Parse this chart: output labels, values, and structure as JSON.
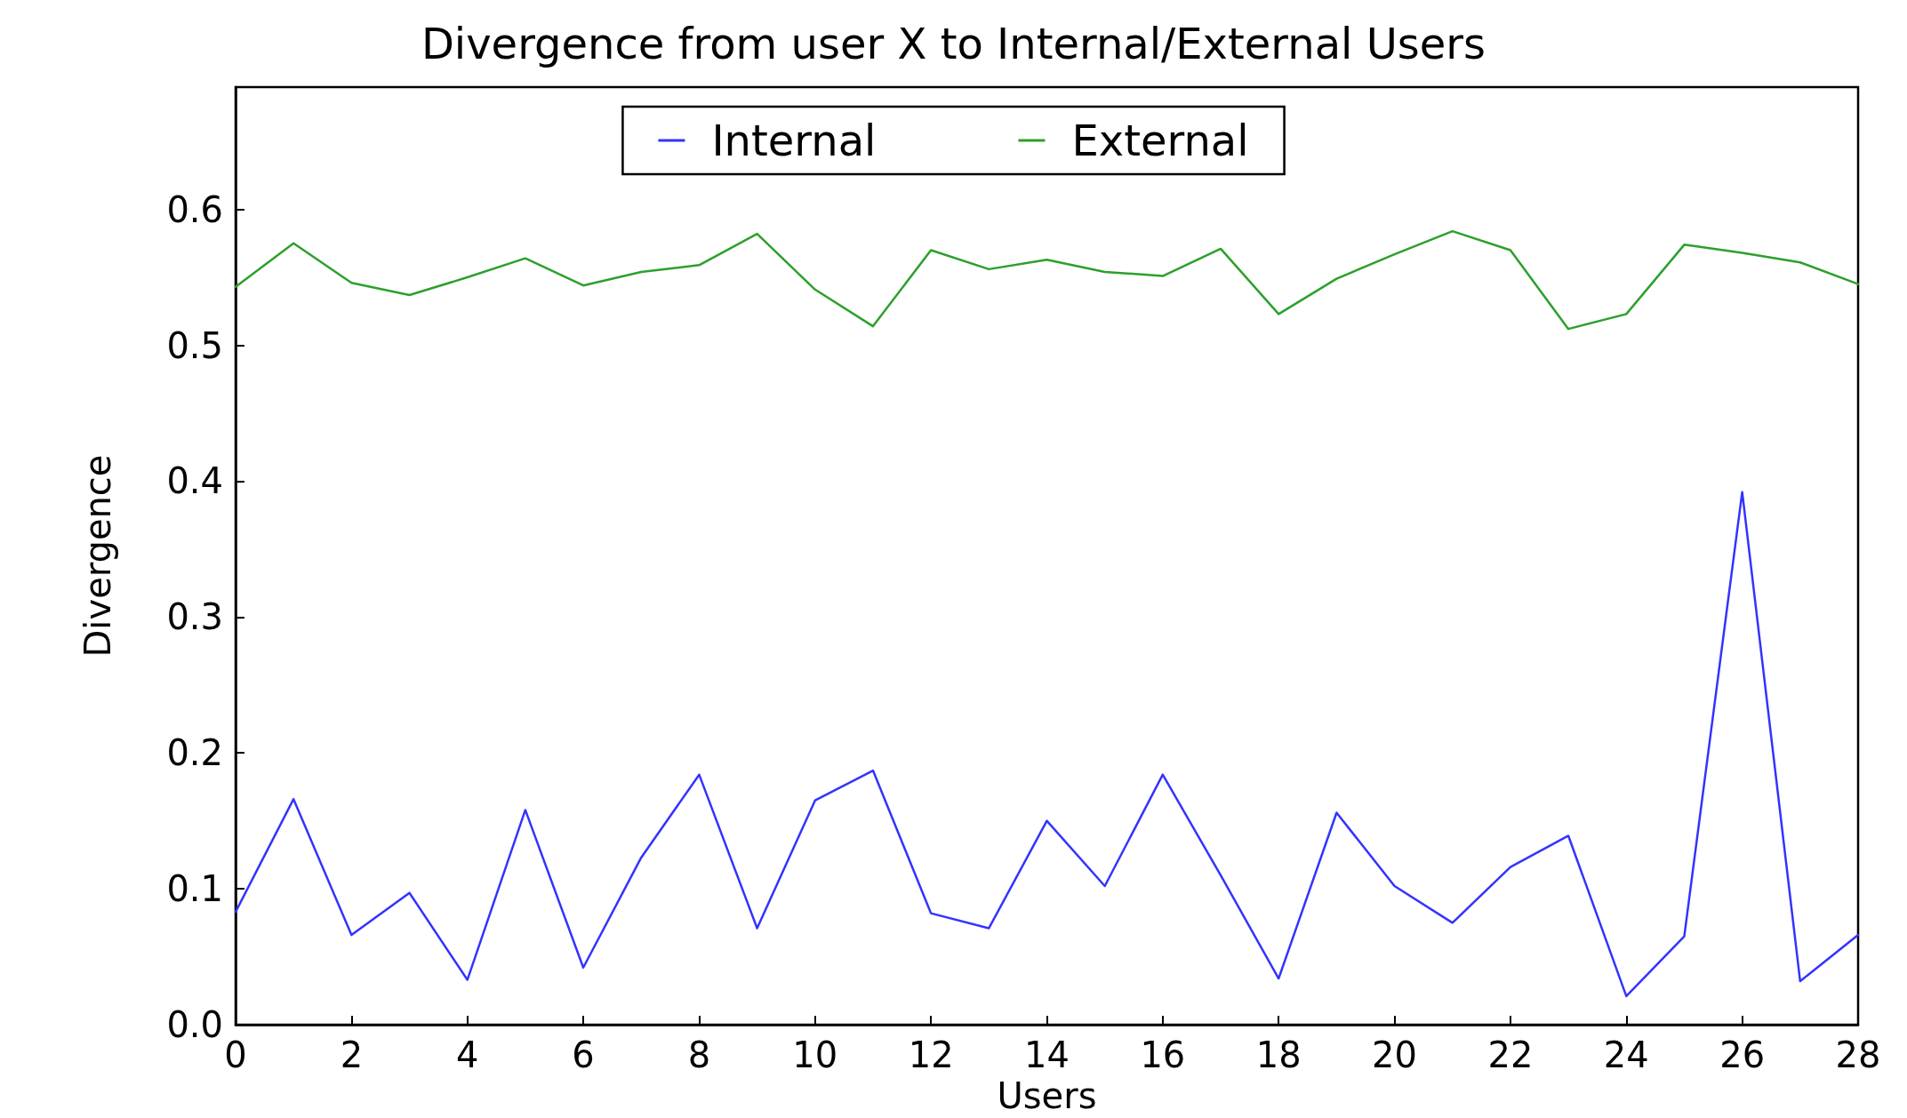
{
  "chart_data": {
    "type": "line",
    "title": "Divergence from user X to Internal/External Users",
    "xlabel": "Users",
    "ylabel": "Divergence",
    "x": [
      0,
      1,
      2,
      3,
      4,
      5,
      6,
      7,
      8,
      9,
      10,
      11,
      12,
      13,
      14,
      15,
      16,
      17,
      18,
      19,
      20,
      21,
      22,
      23,
      24,
      25,
      26,
      27,
      28
    ],
    "series": [
      {
        "name": "Internal",
        "color": "#3333ff",
        "values": [
          0.083,
          0.166,
          0.066,
          0.097,
          0.033,
          0.158,
          0.042,
          0.123,
          0.184,
          0.071,
          0.165,
          0.187,
          0.082,
          0.071,
          0.15,
          0.102,
          0.184,
          0.11,
          0.034,
          0.156,
          0.102,
          0.075,
          0.116,
          0.139,
          0.021,
          0.065,
          0.392,
          0.032,
          0.066
        ]
      },
      {
        "name": "External",
        "color": "#2ca02c",
        "values": [
          0.543,
          0.575,
          0.546,
          0.537,
          0.55,
          0.564,
          0.544,
          0.554,
          0.559,
          0.582,
          0.541,
          0.514,
          0.57,
          0.556,
          0.563,
          0.554,
          0.551,
          0.571,
          0.523,
          0.549,
          0.567,
          0.584,
          0.57,
          0.512,
          0.523,
          0.574,
          0.568,
          0.561,
          0.545
        ]
      }
    ],
    "xlim": [
      0,
      28
    ],
    "xticks": [
      0,
      2,
      4,
      6,
      8,
      10,
      12,
      14,
      16,
      18,
      20,
      22,
      24,
      26,
      28
    ],
    "ylim": [
      0,
      0.69
    ],
    "yticks": [
      {
        "value": 0,
        "label": "0.0"
      },
      0.1,
      0.2,
      0.3,
      0.4,
      0.5,
      0.6
    ],
    "legend": "top",
    "grid": false,
    "marker": "none",
    "line_style": "solid"
  }
}
